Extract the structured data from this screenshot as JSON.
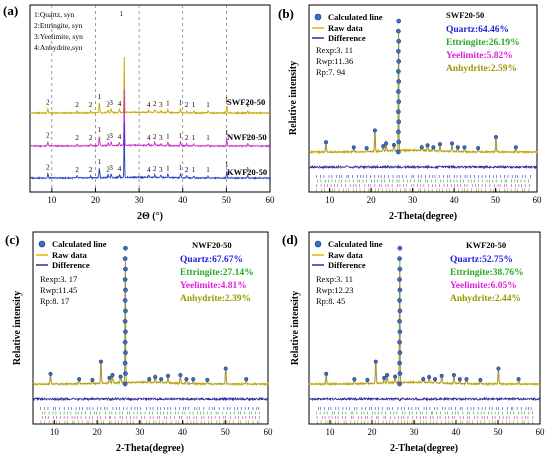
{
  "chart_data": [
    {
      "panel": "(a)",
      "type": "line",
      "xlabel": "2Θ (°)",
      "xlim": [
        5,
        60
      ],
      "xticks": [
        "10",
        "20",
        "30",
        "40",
        "50",
        "60"
      ],
      "key": [
        "1:Quartz, syn",
        "2:Ettringite, syn",
        "3:Yeelimite, syn",
        "4:Anhydrite,syn"
      ],
      "series": [
        {
          "name": "SWF20-50",
          "color": "#c9a800",
          "offset": 2
        },
        {
          "name": "NWF20-50",
          "color": "#cc33cc",
          "offset": 1
        },
        {
          "name": "KWF20-50",
          "color": "#2a3cc4",
          "offset": 0
        }
      ],
      "peaks": [
        {
          "x": 9.1,
          "h": 0.25,
          "label": "2"
        },
        {
          "x": 15.8,
          "h": 0.12,
          "label": "2"
        },
        {
          "x": 18.9,
          "h": 0.1,
          "label": "2"
        },
        {
          "x": 20.9,
          "h": 0.55,
          "label": "1"
        },
        {
          "x": 22.9,
          "h": 0.15,
          "label": "2"
        },
        {
          "x": 23.6,
          "h": 0.22,
          "label": "3"
        },
        {
          "x": 25.5,
          "h": 0.18,
          "label": "4"
        },
        {
          "x": 26.6,
          "h": 3.1,
          "label": "1"
        },
        {
          "x": 32.2,
          "h": 0.12,
          "label": "4"
        },
        {
          "x": 33.6,
          "h": 0.17,
          "label": "2"
        },
        {
          "x": 35.0,
          "h": 0.12,
          "label": "3"
        },
        {
          "x": 36.6,
          "h": 0.2,
          "label": "1"
        },
        {
          "x": 39.5,
          "h": 0.22,
          "label": "1"
        },
        {
          "x": 40.9,
          "h": 0.12,
          "label": "2"
        },
        {
          "x": 42.5,
          "h": 0.12,
          "label": "1"
        },
        {
          "x": 45.8,
          "h": 0.1,
          "label": "1"
        },
        {
          "x": 50.1,
          "h": 0.38,
          "label": "1"
        },
        {
          "x": 54.9,
          "h": 0.12,
          "label": "1"
        }
      ]
    },
    {
      "panel": "(b)",
      "type": "line",
      "sample": "SWF20-50",
      "xlabel": "2-Theta(degree)",
      "ylabel": "Relative intensity",
      "xlim": [
        5,
        60
      ],
      "xticks": [
        "10",
        "20",
        "30",
        "40",
        "50",
        "60"
      ],
      "legend": [
        "Calculated line",
        "Raw data",
        "Difference"
      ],
      "stats": [
        "Rexp:3. 11",
        "Rwp:11.36",
        "Rp:7. 94"
      ],
      "phases": [
        {
          "label": "Quartz:64.46%",
          "color": "#2222dd"
        },
        {
          "label": "Ettringite:26.19%",
          "color": "#22aa22"
        },
        {
          "label": "Yeelimite:5.82%",
          "color": "#dd22dd"
        },
        {
          "label": "Anhydrite:2.59%",
          "color": "#999900"
        }
      ]
    },
    {
      "panel": "(c)",
      "type": "line",
      "sample": "NWF20-50",
      "xlabel": "2-Theta(degree)",
      "ylabel": "Relative intensity",
      "xlim": [
        5,
        60
      ],
      "xticks": [
        "10",
        "20",
        "30",
        "40",
        "50",
        "60"
      ],
      "legend": [
        "Calculated line",
        "Raw data",
        "Difference"
      ],
      "stats": [
        "Rexp:3. 17",
        "Rwp:11.45",
        "Rp:8. 17"
      ],
      "phases": [
        {
          "label": "Quartz:67.67%",
          "color": "#2222dd"
        },
        {
          "label": "Ettringite:27.14%",
          "color": "#22aa22"
        },
        {
          "label": "Yeelimite:4.81%",
          "color": "#dd22dd"
        },
        {
          "label": "Anhydrite:2.39%",
          "color": "#999900"
        }
      ]
    },
    {
      "panel": "(d)",
      "type": "line",
      "sample": "KWF20-50",
      "xlabel": "2-Theta(degree)",
      "ylabel": "Relative intensity",
      "xlim": [
        5,
        60
      ],
      "xticks": [
        "10",
        "20",
        "30",
        "40",
        "50",
        "60"
      ],
      "legend": [
        "Calculated line",
        "Raw data",
        "Difference"
      ],
      "stats": [
        "Rexp:3. 11",
        "Rwp:12.23",
        "Rp:8. 45"
      ],
      "phases": [
        {
          "label": "Quartz:52.75%",
          "color": "#2222dd"
        },
        {
          "label": "Ettringite:38.76%",
          "color": "#22aa22"
        },
        {
          "label": "Yeelimite:6.05%",
          "color": "#dd22dd"
        },
        {
          "label": "Anhydrite:2.44%",
          "color": "#999900"
        }
      ]
    }
  ]
}
